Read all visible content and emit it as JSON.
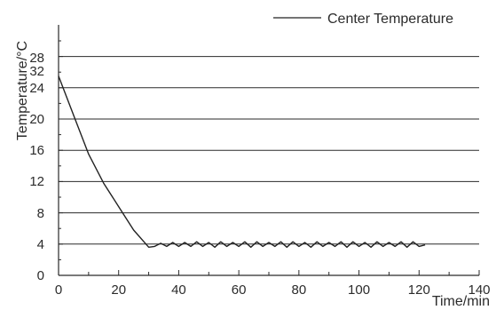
{
  "chart_data": {
    "type": "line",
    "xlabel": "Time/min",
    "ylabel": "Temperature/°C",
    "xlim": [
      0,
      140
    ],
    "ylim": [
      0,
      32
    ],
    "x_ticks": [
      "0",
      "20",
      "40",
      "60",
      "80",
      "100",
      "120",
      "140"
    ],
    "y_ticks": [
      "0",
      "4",
      "8",
      "12",
      "16",
      "20",
      "24",
      "28",
      "32"
    ],
    "gridlines_y": [
      4,
      8,
      12,
      16,
      20,
      24,
      28
    ],
    "grid": "horizontal",
    "legend_position": "top-right",
    "series": [
      {
        "name": "Center Temperature",
        "color": "#222222",
        "x": [
          0,
          5,
          10,
          15,
          20,
          25,
          30,
          32,
          34,
          36,
          38,
          40,
          42,
          44,
          46,
          48,
          50,
          52,
          54,
          56,
          58,
          60,
          62,
          64,
          66,
          68,
          70,
          72,
          74,
          76,
          78,
          80,
          82,
          84,
          86,
          88,
          90,
          92,
          94,
          96,
          98,
          100,
          102,
          104,
          106,
          108,
          110,
          112,
          114,
          116,
          118,
          120,
          122
        ],
        "y": [
          25.5,
          20.5,
          15.5,
          11.8,
          8.8,
          5.8,
          3.6,
          3.7,
          4.1,
          3.7,
          4.2,
          3.7,
          4.2,
          3.7,
          4.3,
          3.7,
          4.2,
          3.6,
          4.3,
          3.7,
          4.2,
          3.7,
          4.3,
          3.6,
          4.3,
          3.7,
          4.2,
          3.7,
          4.3,
          3.6,
          4.3,
          3.7,
          4.2,
          3.6,
          4.3,
          3.7,
          4.2,
          3.7,
          4.3,
          3.6,
          4.3,
          3.7,
          4.2,
          3.6,
          4.3,
          3.7,
          4.2,
          3.7,
          4.3,
          3.6,
          4.3,
          3.7,
          3.9
        ]
      }
    ]
  }
}
